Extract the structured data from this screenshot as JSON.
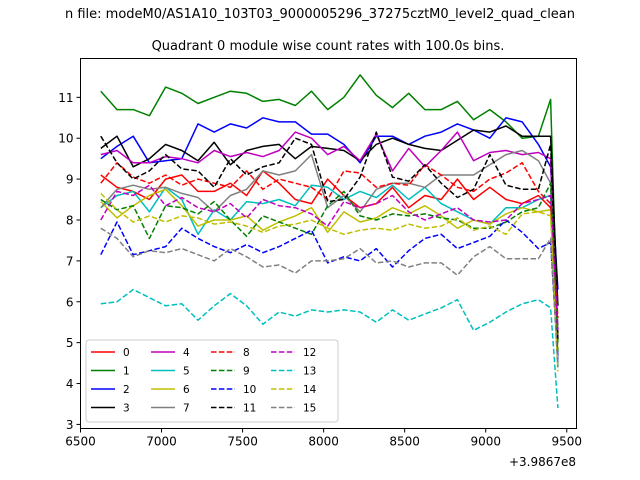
{
  "figure": {
    "suptitle": "n file: modeM0/AS1A10_103T03_9000005296_37275cztM0_level2_quad_clean",
    "offset_label": "+3.9867e8"
  },
  "chart_data": {
    "type": "line",
    "title": "Quadrant 0 module wise count rates with 100.0s bins.",
    "xlabel": "",
    "ylabel": "",
    "xlim": [
      6500,
      9560
    ],
    "ylim": [
      2.9,
      11.95
    ],
    "xticks": [
      6500,
      7000,
      7500,
      8000,
      8500,
      9000,
      9500
    ],
    "yticks": [
      3,
      4,
      5,
      6,
      7,
      8,
      9,
      10,
      11
    ],
    "grid": false,
    "legend": {
      "placement": "lower-left",
      "ncol": 4
    },
    "x": [
      6625,
      6725,
      6825,
      6925,
      7025,
      7125,
      7225,
      7325,
      7425,
      7525,
      7625,
      7725,
      7825,
      7925,
      8025,
      8125,
      8225,
      8325,
      8425,
      8525,
      8625,
      8725,
      8825,
      8925,
      9025,
      9125,
      9225,
      9325,
      9400,
      9445
    ],
    "series": [
      {
        "name": "0",
        "color": "#ff0000",
        "dash": "solid",
        "values": [
          9.1,
          8.8,
          8.7,
          8.5,
          9.0,
          9.1,
          8.7,
          8.7,
          8.9,
          8.6,
          9.2,
          8.9,
          8.5,
          8.4,
          9.0,
          8.6,
          8.3,
          8.4,
          8.8,
          8.3,
          8.6,
          8.5,
          9.0,
          8.5,
          8.8,
          8.5,
          8.4,
          8.6,
          8.3,
          5.2
        ]
      },
      {
        "name": "1",
        "color": "#008000",
        "dash": "solid",
        "values": [
          11.15,
          10.7,
          10.7,
          10.55,
          11.25,
          11.1,
          10.85,
          11.0,
          11.15,
          11.1,
          10.9,
          10.95,
          10.8,
          11.15,
          10.7,
          11.0,
          11.55,
          11.05,
          10.75,
          11.1,
          10.7,
          10.7,
          10.9,
          10.45,
          10.7,
          10.4,
          10.0,
          10.05,
          10.95,
          5.0
        ]
      },
      {
        "name": "2",
        "color": "#0000ff",
        "dash": "solid",
        "values": [
          9.5,
          9.8,
          10.05,
          9.4,
          9.45,
          9.5,
          10.35,
          10.15,
          10.35,
          10.25,
          10.5,
          10.4,
          10.4,
          10.1,
          10.1,
          9.85,
          9.4,
          10.05,
          10.05,
          9.85,
          10.05,
          10.15,
          10.35,
          10.2,
          10.0,
          10.5,
          10.4,
          9.85,
          9.3,
          6.3
        ]
      },
      {
        "name": "3",
        "color": "#000000",
        "dash": "solid",
        "values": [
          9.75,
          10.05,
          9.3,
          9.5,
          9.85,
          9.7,
          9.45,
          9.9,
          9.35,
          9.7,
          9.8,
          9.85,
          9.5,
          9.8,
          9.75,
          9.7,
          9.45,
          9.85,
          10.0,
          9.85,
          9.75,
          9.7,
          9.95,
          10.2,
          10.15,
          10.3,
          10.05,
          10.05,
          10.05,
          5.9
        ]
      },
      {
        "name": "4",
        "color": "#c000c0",
        "dash": "solid",
        "values": [
          9.6,
          9.7,
          9.4,
          9.4,
          9.55,
          9.5,
          9.4,
          9.7,
          9.55,
          9.65,
          9.55,
          9.7,
          10.15,
          10.0,
          9.6,
          9.8,
          9.45,
          10.1,
          9.2,
          9.75,
          9.3,
          9.7,
          10.15,
          9.45,
          9.65,
          9.7,
          9.6,
          9.65,
          9.5,
          4.5
        ]
      },
      {
        "name": "5",
        "color": "#00bfbf",
        "dash": "solid",
        "values": [
          8.3,
          8.6,
          8.7,
          8.2,
          8.8,
          8.5,
          7.65,
          8.25,
          8.0,
          8.45,
          8.4,
          8.5,
          8.35,
          8.85,
          8.8,
          8.5,
          8.7,
          8.55,
          8.85,
          8.5,
          8.8,
          8.4,
          8.2,
          8.0,
          7.9,
          8.3,
          8.3,
          8.5,
          8.6,
          4.4
        ]
      },
      {
        "name": "6",
        "color": "#bfbf00",
        "dash": "solid",
        "values": [
          8.45,
          8.05,
          8.35,
          8.6,
          8.75,
          8.35,
          7.85,
          8.0,
          8.0,
          8.1,
          7.75,
          7.95,
          8.1,
          8.3,
          7.7,
          8.2,
          7.95,
          8.05,
          8.3,
          8.15,
          8.35,
          8.1,
          7.8,
          8.0,
          7.9,
          8.15,
          8.3,
          8.2,
          8.25,
          4.8
        ]
      },
      {
        "name": "7",
        "color": "#808080",
        "dash": "solid",
        "values": [
          8.3,
          8.75,
          8.85,
          8.75,
          8.8,
          8.65,
          8.55,
          8.2,
          8.6,
          8.75,
          9.2,
          9.1,
          9.2,
          9.6,
          8.3,
          8.6,
          8.2,
          8.75,
          8.9,
          8.9,
          8.8,
          9.1,
          9.1,
          9.1,
          9.35,
          9.6,
          9.7,
          9.45,
          8.9,
          5.4
        ]
      },
      {
        "name": "8",
        "color": "#ff0000",
        "dash": "dashed",
        "values": [
          8.9,
          9.4,
          9.05,
          8.9,
          9.1,
          8.85,
          9.0,
          8.9,
          8.8,
          9.2,
          8.75,
          9.0,
          8.9,
          8.8,
          8.5,
          9.2,
          9.15,
          8.8,
          8.9,
          8.85,
          9.35,
          9.1,
          8.8,
          8.7,
          9.0,
          9.15,
          9.4,
          8.7,
          8.4,
          5.6
        ]
      },
      {
        "name": "9",
        "color": "#008000",
        "dash": "dashed",
        "values": [
          8.5,
          8.25,
          8.35,
          7.55,
          8.35,
          8.3,
          8.15,
          8.45,
          8.0,
          7.6,
          8.1,
          7.95,
          7.8,
          7.65,
          8.35,
          8.7,
          8.1,
          8.0,
          8.15,
          8.1,
          8.15,
          8.05,
          8.0,
          7.8,
          7.8,
          7.95,
          8.2,
          8.3,
          8.9,
          4.7
        ]
      },
      {
        "name": "10",
        "color": "#0000ff",
        "dash": "dashed",
        "values": [
          7.15,
          7.95,
          7.15,
          7.25,
          7.35,
          7.8,
          7.55,
          7.35,
          7.2,
          7.4,
          7.2,
          7.35,
          7.55,
          7.75,
          6.95,
          7.1,
          7.0,
          7.3,
          6.85,
          7.25,
          7.55,
          7.65,
          7.3,
          7.45,
          7.6,
          8.0,
          7.7,
          7.3,
          7.45,
          4.6
        ]
      },
      {
        "name": "11",
        "color": "#000000",
        "dash": "dashed",
        "values": [
          10.05,
          9.4,
          9.0,
          9.2,
          9.6,
          9.25,
          9.2,
          8.8,
          9.5,
          9.1,
          9.3,
          9.4,
          10.0,
          9.85,
          8.45,
          8.5,
          9.05,
          10.15,
          9.05,
          8.95,
          9.35,
          8.9,
          8.55,
          8.75,
          9.6,
          8.85,
          8.75,
          8.75,
          9.85,
          5.1
        ]
      },
      {
        "name": "12",
        "color": "#c000c0",
        "dash": "dashed",
        "values": [
          8.0,
          8.7,
          8.6,
          8.85,
          8.35,
          8.55,
          8.3,
          8.2,
          8.4,
          8.05,
          8.5,
          8.35,
          8.3,
          8.15,
          7.85,
          8.45,
          8.3,
          8.4,
          8.6,
          8.2,
          8.0,
          8.15,
          8.3,
          8.0,
          7.95,
          8.0,
          8.4,
          8.5,
          8.6,
          5.3
        ]
      },
      {
        "name": "13",
        "color": "#00bfbf",
        "dash": "dashed",
        "values": [
          5.95,
          6.0,
          6.3,
          6.1,
          5.9,
          5.95,
          5.55,
          5.9,
          6.2,
          5.9,
          5.45,
          5.75,
          5.65,
          5.8,
          5.75,
          5.8,
          5.75,
          5.5,
          5.8,
          5.55,
          5.7,
          5.85,
          6.05,
          5.3,
          5.5,
          5.75,
          5.95,
          6.05,
          5.85,
          3.4
        ]
      },
      {
        "name": "14",
        "color": "#bfbf00",
        "dash": "dashed",
        "values": [
          8.65,
          8.25,
          7.95,
          8.1,
          7.95,
          8.1,
          8.05,
          7.9,
          7.95,
          7.85,
          7.7,
          7.85,
          7.9,
          8.0,
          7.8,
          7.65,
          7.75,
          7.8,
          7.75,
          7.9,
          7.8,
          7.85,
          8.05,
          7.75,
          7.85,
          7.65,
          8.15,
          8.2,
          8.1,
          4.3
        ]
      },
      {
        "name": "15",
        "color": "#808080",
        "dash": "dashed",
        "values": [
          7.8,
          7.55,
          7.1,
          7.25,
          7.2,
          7.3,
          7.15,
          7.0,
          7.3,
          7.1,
          6.85,
          6.9,
          6.7,
          7.0,
          7.0,
          7.05,
          7.3,
          6.95,
          7.0,
          6.85,
          6.95,
          6.95,
          6.65,
          7.1,
          7.35,
          7.05,
          7.05,
          7.05,
          7.55,
          4.4
        ]
      }
    ]
  }
}
